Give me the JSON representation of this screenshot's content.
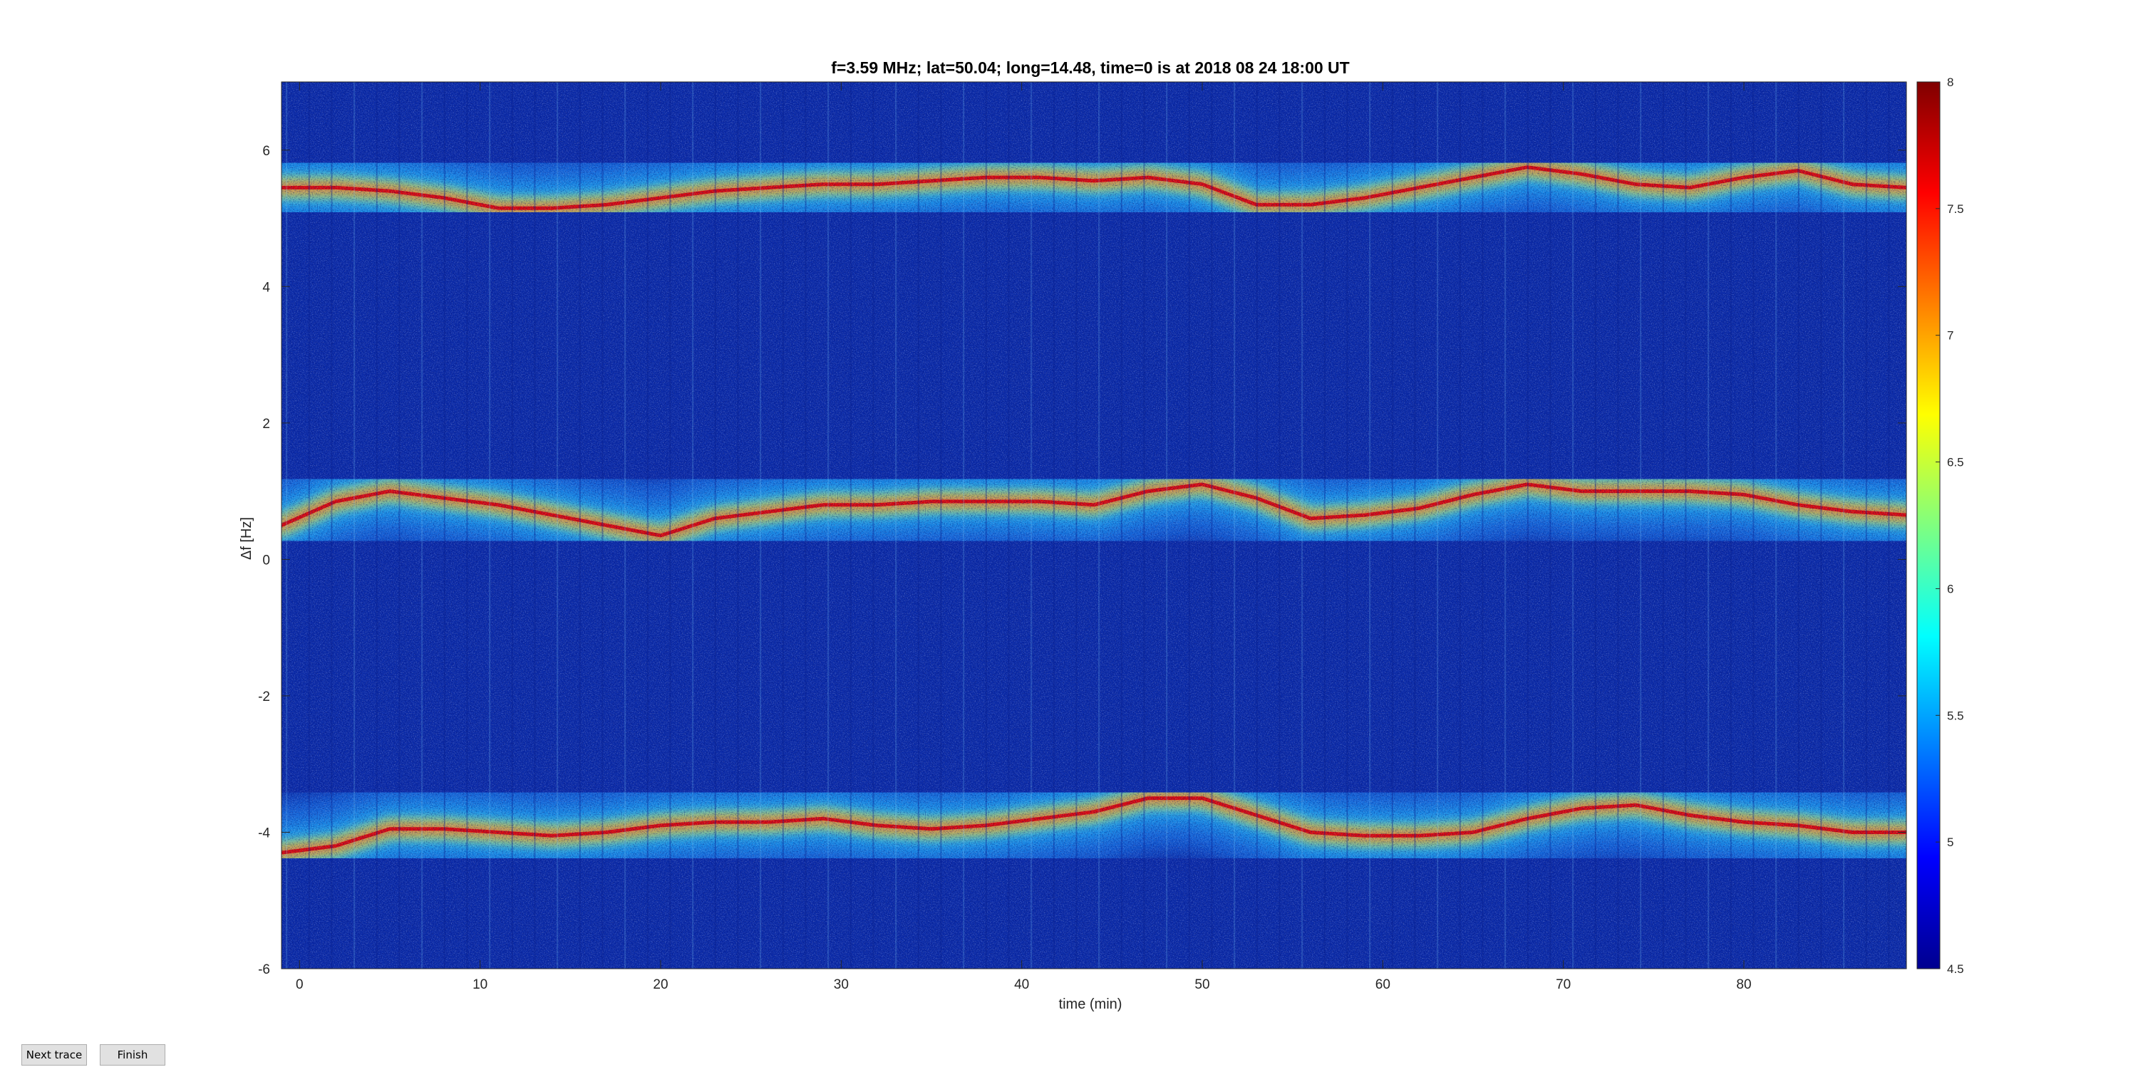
{
  "chart_data": {
    "type": "heatmap",
    "title": "f=3.59 MHz;  lat=50.04; long=14.48, time=0 is at 2018 08 24 18:00 UT",
    "xlabel": "time (min)",
    "ylabel": "Δf [Hz]",
    "xlim": [
      -1,
      89
    ],
    "ylim": [
      -6,
      7
    ],
    "xticks": [
      0,
      10,
      20,
      30,
      40,
      50,
      60,
      70,
      80
    ],
    "yticks": [
      -6,
      -4,
      -2,
      0,
      2,
      4,
      6
    ],
    "colorbar": {
      "range": [
        4.5,
        8
      ],
      "ticks": [
        4.5,
        5,
        5.5,
        6,
        6.5,
        7,
        7.5,
        8
      ],
      "tick_labels": [
        "4.5",
        "5",
        "5.5",
        "6",
        "6.5",
        "7",
        "7.5",
        "8"
      ],
      "colormap": "jet"
    },
    "series": [
      {
        "x": [
          -1,
          2,
          5,
          8,
          11,
          14,
          17,
          20,
          23,
          26,
          29,
          32,
          35,
          38,
          41,
          44,
          47,
          50,
          53,
          56,
          59,
          62,
          65,
          68,
          71,
          74,
          77,
          80,
          83,
          86,
          89
        ],
        "values": [
          5.45,
          5.45,
          5.4,
          5.3,
          5.15,
          5.15,
          5.2,
          5.3,
          5.4,
          5.45,
          5.5,
          5.5,
          5.55,
          5.6,
          5.6,
          5.55,
          5.6,
          5.5,
          5.2,
          5.2,
          5.3,
          5.45,
          5.6,
          5.75,
          5.65,
          5.5,
          5.45,
          5.6,
          5.7,
          5.5,
          5.45
        ]
      },
      {
        "x": [
          -1,
          2,
          5,
          8,
          11,
          14,
          17,
          20,
          23,
          26,
          29,
          32,
          35,
          38,
          41,
          44,
          47,
          50,
          53,
          56,
          59,
          62,
          65,
          68,
          71,
          74,
          77,
          80,
          83,
          86,
          89
        ],
        "values": [
          0.5,
          0.85,
          1.0,
          0.9,
          0.8,
          0.65,
          0.5,
          0.35,
          0.6,
          0.7,
          0.8,
          0.8,
          0.85,
          0.85,
          0.85,
          0.8,
          1.0,
          1.1,
          0.9,
          0.6,
          0.65,
          0.75,
          0.95,
          1.1,
          1.0,
          1.0,
          1.0,
          0.95,
          0.8,
          0.7,
          0.65
        ]
      },
      {
        "x": [
          -1,
          2,
          5,
          8,
          11,
          14,
          17,
          20,
          23,
          26,
          29,
          32,
          35,
          38,
          41,
          44,
          47,
          50,
          53,
          56,
          59,
          62,
          65,
          68,
          71,
          74,
          77,
          80,
          83,
          86,
          89
        ],
        "values": [
          -4.3,
          -4.2,
          -3.95,
          -3.95,
          -4.0,
          -4.05,
          -4.0,
          -3.9,
          -3.85,
          -3.85,
          -3.8,
          -3.9,
          -3.95,
          -3.9,
          -3.8,
          -3.7,
          -3.5,
          -3.5,
          -3.75,
          -4.0,
          -4.05,
          -4.05,
          -4.0,
          -3.8,
          -3.65,
          -3.6,
          -3.75,
          -3.85,
          -3.9,
          -4.0,
          -4.0
        ]
      }
    ]
  },
  "buttons": {
    "next_trace": "Next trace",
    "finish": "Finish"
  }
}
